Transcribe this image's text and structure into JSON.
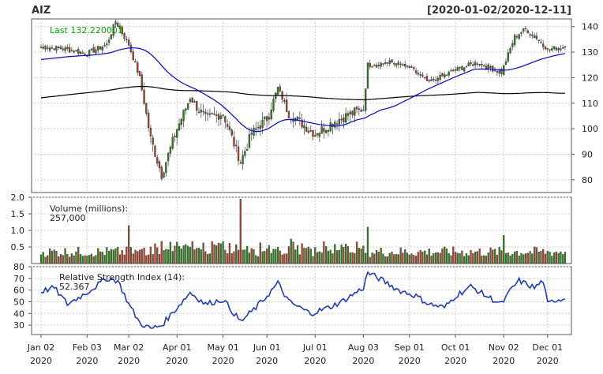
{
  "header": {
    "symbol": "AIZ",
    "range": "[2020-01-02/2020-12-11]"
  },
  "colors": {
    "up": "#2e7d1e",
    "down": "#a0442c",
    "wick": "#555555",
    "sma50": "#0000ff",
    "sma200": "#000000",
    "rsi": "#1a3cc8",
    "label_green": "#00aa00",
    "label_blue": "#2233cc",
    "grid": "#cccccc"
  },
  "chart_data": [
    {
      "type": "candlestick",
      "panel": "price",
      "last_label": "Last 132.220001",
      "overlays": [
        "SMA 50",
        "SMA 200"
      ],
      "ylim": [
        75,
        143
      ],
      "yticks": [
        80,
        90,
        100,
        110,
        120,
        130,
        140
      ],
      "series_close_approx": [
        {
          "date": "2020-01-02",
          "close": 132.0
        },
        {
          "date": "2020-01-15",
          "close": 131.5
        },
        {
          "date": "2020-02-03",
          "close": 129.5
        },
        {
          "date": "2020-02-14",
          "close": 133.0
        },
        {
          "date": "2020-02-21",
          "close": 142.0
        },
        {
          "date": "2020-03-02",
          "close": 133.0
        },
        {
          "date": "2020-03-09",
          "close": 120.0
        },
        {
          "date": "2020-03-16",
          "close": 96.0
        },
        {
          "date": "2020-03-23",
          "close": 82.0
        },
        {
          "date": "2020-04-01",
          "close": 100.0
        },
        {
          "date": "2020-04-09",
          "close": 112.0
        },
        {
          "date": "2020-04-21",
          "close": 104.0
        },
        {
          "date": "2020-05-01",
          "close": 106.0
        },
        {
          "date": "2020-05-13",
          "close": 87.0
        },
        {
          "date": "2020-05-20",
          "close": 98.0
        },
        {
          "date": "2020-06-01",
          "close": 104.0
        },
        {
          "date": "2020-06-08",
          "close": 116.0
        },
        {
          "date": "2020-06-15",
          "close": 106.0
        },
        {
          "date": "2020-07-01",
          "close": 98.0
        },
        {
          "date": "2020-07-15",
          "close": 103.0
        },
        {
          "date": "2020-08-03",
          "close": 108.0
        },
        {
          "date": "2020-08-05",
          "close": 125.0
        },
        {
          "date": "2020-08-20",
          "close": 126.0
        },
        {
          "date": "2020-09-01",
          "close": 124.0
        },
        {
          "date": "2020-09-15",
          "close": 118.0
        },
        {
          "date": "2020-10-01",
          "close": 123.0
        },
        {
          "date": "2020-10-15",
          "close": 126.0
        },
        {
          "date": "2020-10-30",
          "close": 122.0
        },
        {
          "date": "2020-11-09",
          "close": 136.0
        },
        {
          "date": "2020-11-16",
          "close": 139.0
        },
        {
          "date": "2020-11-25",
          "close": 134.0
        },
        {
          "date": "2020-12-01",
          "close": 131.0
        },
        {
          "date": "2020-12-11",
          "close": 132.22
        }
      ]
    },
    {
      "type": "bar",
      "panel": "volume",
      "label": "Volume (millions):",
      "last_value": "257,000",
      "ylim": [
        0,
        2.0
      ],
      "yticks": [
        0.5,
        1.0,
        1.5,
        2.0
      ],
      "ytick_labels": [
        "0.5",
        "1.0",
        "1.5",
        "2.0"
      ],
      "peaks_approx": [
        {
          "date": "2020-03-02",
          "value": 1.15
        },
        {
          "date": "2020-05-13",
          "value": 1.95
        },
        {
          "date": "2020-08-05",
          "value": 1.1
        },
        {
          "date": "2020-11-02",
          "value": 0.85
        }
      ],
      "typical_value_approx": 0.35
    },
    {
      "type": "line",
      "panel": "rsi",
      "label": "Relative Strength Index (14):",
      "last_value": "52.367",
      "ylim": [
        22,
        80
      ],
      "yticks": [
        30,
        40,
        50,
        60,
        70,
        80
      ],
      "series_approx": [
        {
          "date": "2020-01-02",
          "value": 59
        },
        {
          "date": "2020-01-10",
          "value": 62
        },
        {
          "date": "2020-01-20",
          "value": 48
        },
        {
          "date": "2020-02-03",
          "value": 58
        },
        {
          "date": "2020-02-14",
          "value": 70
        },
        {
          "date": "2020-02-24",
          "value": 68
        },
        {
          "date": "2020-03-02",
          "value": 48
        },
        {
          "date": "2020-03-09",
          "value": 32
        },
        {
          "date": "2020-03-16",
          "value": 27
        },
        {
          "date": "2020-03-23",
          "value": 30
        },
        {
          "date": "2020-04-01",
          "value": 45
        },
        {
          "date": "2020-04-09",
          "value": 58
        },
        {
          "date": "2020-04-21",
          "value": 48
        },
        {
          "date": "2020-05-01",
          "value": 52
        },
        {
          "date": "2020-05-13",
          "value": 33
        },
        {
          "date": "2020-05-22",
          "value": 45
        },
        {
          "date": "2020-06-01",
          "value": 55
        },
        {
          "date": "2020-06-08",
          "value": 66
        },
        {
          "date": "2020-06-15",
          "value": 50
        },
        {
          "date": "2020-06-29",
          "value": 40
        },
        {
          "date": "2020-07-10",
          "value": 45
        },
        {
          "date": "2020-07-20",
          "value": 50
        },
        {
          "date": "2020-08-03",
          "value": 62
        },
        {
          "date": "2020-08-05",
          "value": 75
        },
        {
          "date": "2020-08-14",
          "value": 68
        },
        {
          "date": "2020-08-25",
          "value": 60
        },
        {
          "date": "2020-09-04",
          "value": 55
        },
        {
          "date": "2020-09-15",
          "value": 48
        },
        {
          "date": "2020-09-24",
          "value": 45
        },
        {
          "date": "2020-10-01",
          "value": 55
        },
        {
          "date": "2020-10-12",
          "value": 63
        },
        {
          "date": "2020-10-21",
          "value": 55
        },
        {
          "date": "2020-10-30",
          "value": 48
        },
        {
          "date": "2020-11-06",
          "value": 62
        },
        {
          "date": "2020-11-11",
          "value": 68
        },
        {
          "date": "2020-11-20",
          "value": 62
        },
        {
          "date": "2020-11-26",
          "value": 68
        },
        {
          "date": "2020-12-01",
          "value": 48
        },
        {
          "date": "2020-12-07",
          "value": 52
        },
        {
          "date": "2020-12-11",
          "value": 52.367
        }
      ]
    }
  ],
  "x_axis": {
    "ticks": [
      {
        "date": "2020-01-02",
        "top": "Jan 02",
        "bottom": "2020"
      },
      {
        "date": "2020-02-03",
        "top": "Feb 03",
        "bottom": "2020"
      },
      {
        "date": "2020-03-02",
        "top": "Mar 02",
        "bottom": "2020"
      },
      {
        "date": "2020-04-01",
        "top": "Apr 01",
        "bottom": "2020"
      },
      {
        "date": "2020-05-01",
        "top": "May 01",
        "bottom": "2020"
      },
      {
        "date": "2020-06-01",
        "top": "Jun 01",
        "bottom": "2020"
      },
      {
        "date": "2020-07-01",
        "top": "Jul 01",
        "bottom": "2020"
      },
      {
        "date": "2020-08-03",
        "top": "Aug 03",
        "bottom": "2020"
      },
      {
        "date": "2020-09-01",
        "top": "Sep 01",
        "bottom": "2020"
      },
      {
        "date": "2020-10-01",
        "top": "Oct 01",
        "bottom": "2020"
      },
      {
        "date": "2020-11-02",
        "top": "Nov 02",
        "bottom": "2020"
      },
      {
        "date": "2020-12-01",
        "top": "Dec 01",
        "bottom": "2020"
      }
    ]
  }
}
